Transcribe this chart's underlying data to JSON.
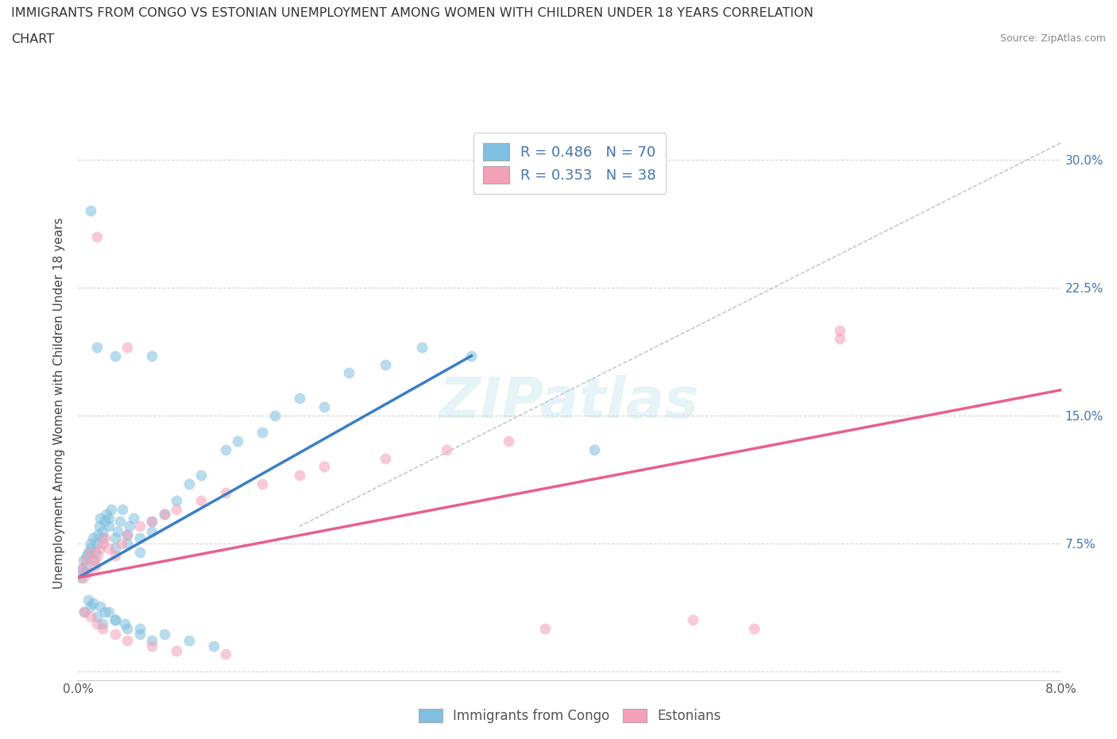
{
  "title_line1": "IMMIGRANTS FROM CONGO VS ESTONIAN UNEMPLOYMENT AMONG WOMEN WITH CHILDREN UNDER 18 YEARS CORRELATION",
  "title_line2": "CHART",
  "source": "Source: ZipAtlas.com",
  "ylabel": "Unemployment Among Women with Children Under 18 years",
  "xlim": [
    0.0,
    0.08
  ],
  "ylim": [
    -0.005,
    0.32
  ],
  "xticks": [
    0.0,
    0.02,
    0.04,
    0.06,
    0.08
  ],
  "yticks": [
    0.0,
    0.075,
    0.15,
    0.225,
    0.3
  ],
  "grid_color": "#cccccc",
  "background_color": "#ffffff",
  "blue_color": "#7fbfdf",
  "pink_color": "#f4a0b8",
  "blue_line_color": "#3a7ec6",
  "pink_line_color": "#e8608a",
  "dashed_line_color": "#b0b8c8",
  "legend_color_text": "#4575b4",
  "blue_scatter_x": [
    0.0002,
    0.0003,
    0.0004,
    0.0005,
    0.0006,
    0.0007,
    0.0008,
    0.001,
    0.001,
    0.0012,
    0.0013,
    0.0014,
    0.0015,
    0.0016,
    0.0017,
    0.0018,
    0.002,
    0.002,
    0.0022,
    0.0023,
    0.0025,
    0.0025,
    0.0027,
    0.003,
    0.003,
    0.0032,
    0.0034,
    0.0036,
    0.004,
    0.004,
    0.0042,
    0.0045,
    0.005,
    0.005,
    0.006,
    0.006,
    0.007,
    0.008,
    0.009,
    0.01,
    0.012,
    0.013,
    0.015,
    0.016,
    0.018,
    0.02,
    0.022,
    0.025,
    0.028,
    0.032,
    0.0005,
    0.001,
    0.0015,
    0.002,
    0.0025,
    0.003,
    0.004,
    0.005,
    0.006,
    0.0008,
    0.0012,
    0.0018,
    0.0022,
    0.003,
    0.0038,
    0.005,
    0.007,
    0.009,
    0.011
  ],
  "blue_scatter_y": [
    0.055,
    0.06,
    0.065,
    0.058,
    0.062,
    0.068,
    0.07,
    0.072,
    0.075,
    0.078,
    0.065,
    0.07,
    0.075,
    0.08,
    0.085,
    0.09,
    0.078,
    0.082,
    0.088,
    0.092,
    0.085,
    0.09,
    0.095,
    0.072,
    0.078,
    0.082,
    0.088,
    0.095,
    0.075,
    0.08,
    0.085,
    0.09,
    0.07,
    0.078,
    0.082,
    0.088,
    0.092,
    0.1,
    0.11,
    0.115,
    0.13,
    0.135,
    0.14,
    0.15,
    0.16,
    0.155,
    0.175,
    0.18,
    0.19,
    0.185,
    0.035,
    0.038,
    0.032,
    0.028,
    0.035,
    0.03,
    0.025,
    0.022,
    0.018,
    0.042,
    0.04,
    0.038,
    0.035,
    0.03,
    0.028,
    0.025,
    0.022,
    0.018,
    0.015
  ],
  "pink_scatter_x": [
    0.0002,
    0.0004,
    0.0006,
    0.0008,
    0.001,
    0.0012,
    0.0014,
    0.0016,
    0.0018,
    0.002,
    0.0022,
    0.0025,
    0.003,
    0.0035,
    0.004,
    0.005,
    0.006,
    0.007,
    0.008,
    0.01,
    0.012,
    0.015,
    0.018,
    0.02,
    0.025,
    0.03,
    0.035,
    0.0005,
    0.001,
    0.0015,
    0.002,
    0.003,
    0.004,
    0.006,
    0.008,
    0.012,
    0.062,
    0.055
  ],
  "pink_scatter_y": [
    0.06,
    0.055,
    0.065,
    0.058,
    0.07,
    0.065,
    0.062,
    0.068,
    0.072,
    0.075,
    0.078,
    0.072,
    0.068,
    0.075,
    0.08,
    0.085,
    0.088,
    0.092,
    0.095,
    0.1,
    0.105,
    0.11,
    0.115,
    0.12,
    0.125,
    0.13,
    0.135,
    0.035,
    0.032,
    0.028,
    0.025,
    0.022,
    0.018,
    0.015,
    0.012,
    0.01,
    0.2,
    0.025
  ],
  "blue_line_x": [
    0.0,
    0.032
  ],
  "blue_line_y": [
    0.055,
    0.185
  ],
  "pink_line_x": [
    0.0,
    0.08
  ],
  "pink_line_y": [
    0.055,
    0.165
  ],
  "dashed_line_x": [
    0.018,
    0.08
  ],
  "dashed_line_y": [
    0.085,
    0.31
  ],
  "outlier_blue": [
    [
      0.001,
      0.27
    ],
    [
      0.0015,
      0.19
    ],
    [
      0.003,
      0.185
    ],
    [
      0.006,
      0.185
    ],
    [
      0.042,
      0.13
    ]
  ],
  "outlier_pink": [
    [
      0.0015,
      0.255
    ],
    [
      0.004,
      0.19
    ],
    [
      0.062,
      0.195
    ],
    [
      0.038,
      0.025
    ],
    [
      0.05,
      0.03
    ]
  ]
}
